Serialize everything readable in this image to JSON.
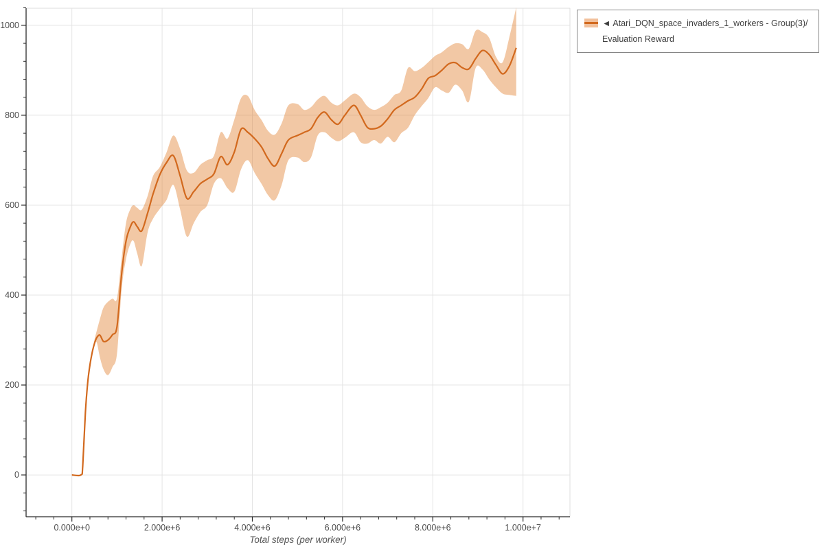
{
  "page": {
    "background": "#ffffff"
  },
  "legend": {
    "marker": "◄",
    "label": "Atari_DQN_space_invaders_1_workers - Group(3)/Evaluation Reward",
    "border_color": "#858585",
    "text_color": "#3f3f3f",
    "swatch_band_color": "#f2c09b",
    "swatch_line_color": "#d2691e"
  },
  "chart_data": {
    "type": "line",
    "title": "",
    "xlabel": "Total steps (per worker)",
    "ylabel": "",
    "legend_position": "top-right-outside",
    "grid": "major-only",
    "grid_color": "#e4e4e4",
    "spine_color_dark": "#2a2a2a",
    "spine_color_light": "#dcdcdc",
    "tick_label_color": "#4d4d4d",
    "xlabel_color": "#555555",
    "xlim_millions": [
      -1.015,
      11.04
    ],
    "ylim": [
      -93,
      1038
    ],
    "x_minor_step_millions": 0.4,
    "y_minor_step": 40,
    "x_ticks": [
      {
        "v": 0,
        "label": "0.000e+0"
      },
      {
        "v": 2,
        "label": "2.000e+6"
      },
      {
        "v": 4,
        "label": "4.000e+6"
      },
      {
        "v": 6,
        "label": "6.000e+6"
      },
      {
        "v": 8,
        "label": "8.000e+6"
      },
      {
        "v": 10,
        "label": "1.000e+7"
      }
    ],
    "y_ticks": [
      {
        "v": 0,
        "label": "0"
      },
      {
        "v": 200,
        "label": "200"
      },
      {
        "v": 400,
        "label": "400"
      },
      {
        "v": 600,
        "label": "600"
      },
      {
        "v": 800,
        "label": "800"
      },
      {
        "v": 1000,
        "label": "1000"
      }
    ],
    "series": [
      {
        "name": "Atari_DQN_space_invaders_1_workers - Group(3)/Evaluation Reward",
        "line_color": "#d2691e",
        "line_width": 2.2,
        "band_color": "#e07b28",
        "band_opacity": 0.42,
        "x_millions": [
          0,
          0.2,
          0.24,
          0.3,
          0.35,
          0.4,
          0.45,
          0.5,
          0.55,
          0.62,
          0.7,
          0.8,
          0.9,
          1.0,
          1.1,
          1.2,
          1.3,
          1.37,
          1.45,
          1.55,
          1.68,
          1.8,
          1.95,
          2.1,
          2.25,
          2.4,
          2.55,
          2.7,
          2.85,
          3.0,
          3.15,
          3.3,
          3.45,
          3.6,
          3.75,
          3.9,
          4.05,
          4.2,
          4.35,
          4.5,
          4.65,
          4.8,
          5.0,
          5.15,
          5.3,
          5.45,
          5.6,
          5.75,
          5.9,
          6.05,
          6.25,
          6.4,
          6.55,
          6.7,
          6.85,
          7.0,
          7.15,
          7.3,
          7.45,
          7.6,
          7.75,
          7.9,
          8.05,
          8.2,
          8.35,
          8.5,
          8.65,
          8.8,
          8.95,
          9.1,
          9.25,
          9.4,
          9.55,
          9.7,
          9.85
        ],
        "mean": [
          0,
          0,
          20,
          140,
          205,
          245,
          272,
          292,
          305,
          311,
          297,
          300,
          312,
          330,
          445,
          520,
          553,
          563,
          552,
          543,
          583,
          625,
          668,
          695,
          710,
          665,
          615,
          630,
          648,
          658,
          670,
          708,
          690,
          718,
          769,
          762,
          748,
          730,
          703,
          687,
          715,
          745,
          755,
          762,
          770,
          795,
          807,
          790,
          780,
          800,
          822,
          800,
          773,
          770,
          776,
          792,
          812,
          822,
          832,
          840,
          858,
          882,
          888,
          900,
          914,
          917,
          906,
          903,
          926,
          944,
          935,
          912,
          892,
          910,
          950
        ],
        "band_low": [
          0,
          0,
          20,
          140,
          205,
          245,
          270,
          288,
          295,
          262,
          235,
          222,
          240,
          270,
          410,
          480,
          515,
          520,
          492,
          465,
          540,
          570,
          592,
          612,
          645,
          590,
          530,
          560,
          585,
          600,
          648,
          660,
          638,
          630,
          680,
          700,
          672,
          648,
          622,
          611,
          645,
          700,
          706,
          696,
          706,
          755,
          762,
          750,
          742,
          750,
          762,
          740,
          737,
          745,
          737,
          752,
          740,
          760,
          772,
          800,
          820,
          838,
          862,
          855,
          850,
          868,
          855,
          830,
          905,
          902,
          880,
          862,
          848,
          845,
          843
        ],
        "band_high": [
          0,
          0,
          20,
          140,
          205,
          245,
          275,
          300,
          320,
          346,
          372,
          385,
          392,
          393,
          480,
          560,
          592,
          600,
          594,
          590,
          621,
          665,
          685,
          718,
          755,
          725,
          677,
          672,
          690,
          700,
          710,
          762,
          748,
          790,
          838,
          843,
          812,
          790,
          765,
          757,
          782,
          822,
          825,
          812,
          818,
          835,
          843,
          828,
          822,
          833,
          848,
          840,
          820,
          812,
          818,
          828,
          845,
          855,
          905,
          898,
          905,
          918,
          932,
          940,
          952,
          960,
          958,
          948,
          988,
          985,
          972,
          930,
          918,
          975,
          1040
        ]
      }
    ]
  }
}
